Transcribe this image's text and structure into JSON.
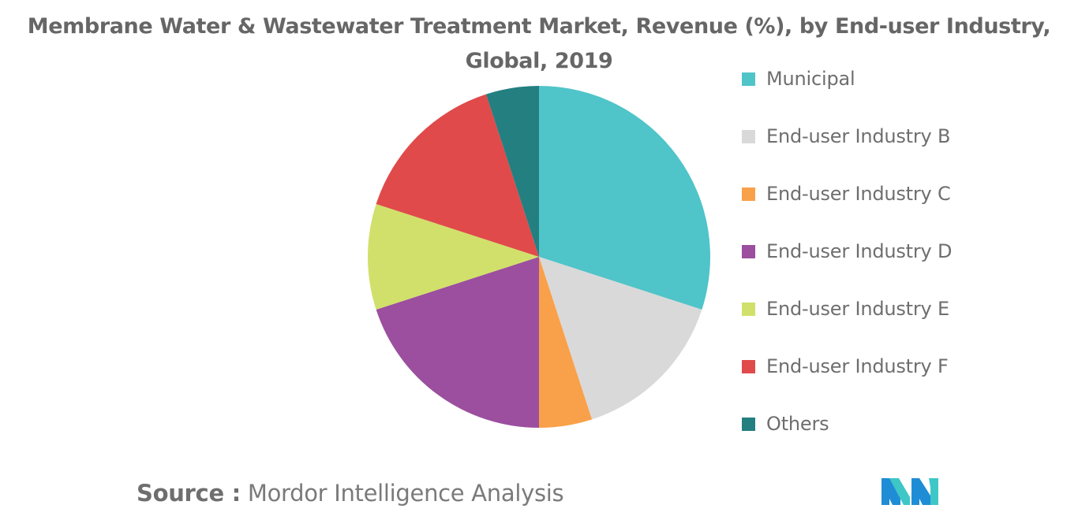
{
  "chart_data": {
    "type": "pie",
    "title": "Membrane Water & Wastewater Treatment Market, Revenue (%), by End-user Industry,",
    "subtitle": "Global, 2019",
    "series": [
      {
        "label": "Municipal",
        "value": 30,
        "color": "#4fc4c9"
      },
      {
        "label": "End-user Industry B",
        "value": 15,
        "color": "#d9d9d9"
      },
      {
        "label": "End-user Industry C",
        "value": 5,
        "color": "#f9a04a"
      },
      {
        "label": "End-user Industry D",
        "value": 20,
        "color": "#9b4f9e"
      },
      {
        "label": "End-user Industry E",
        "value": 10,
        "color": "#d1e06a"
      },
      {
        "label": "End-user Industry F",
        "value": 15,
        "color": "#e04a4a"
      },
      {
        "label": "Others",
        "value": 5,
        "color": "#247f80"
      }
    ],
    "legend_position": "right"
  },
  "source": {
    "prefix": "Source :",
    "text": "Mordor Intelligence Analysis"
  },
  "logo": {
    "icon": "mordor-intelligence-logo",
    "colors": [
      "#1f8dd6",
      "#3fc6c6"
    ]
  }
}
